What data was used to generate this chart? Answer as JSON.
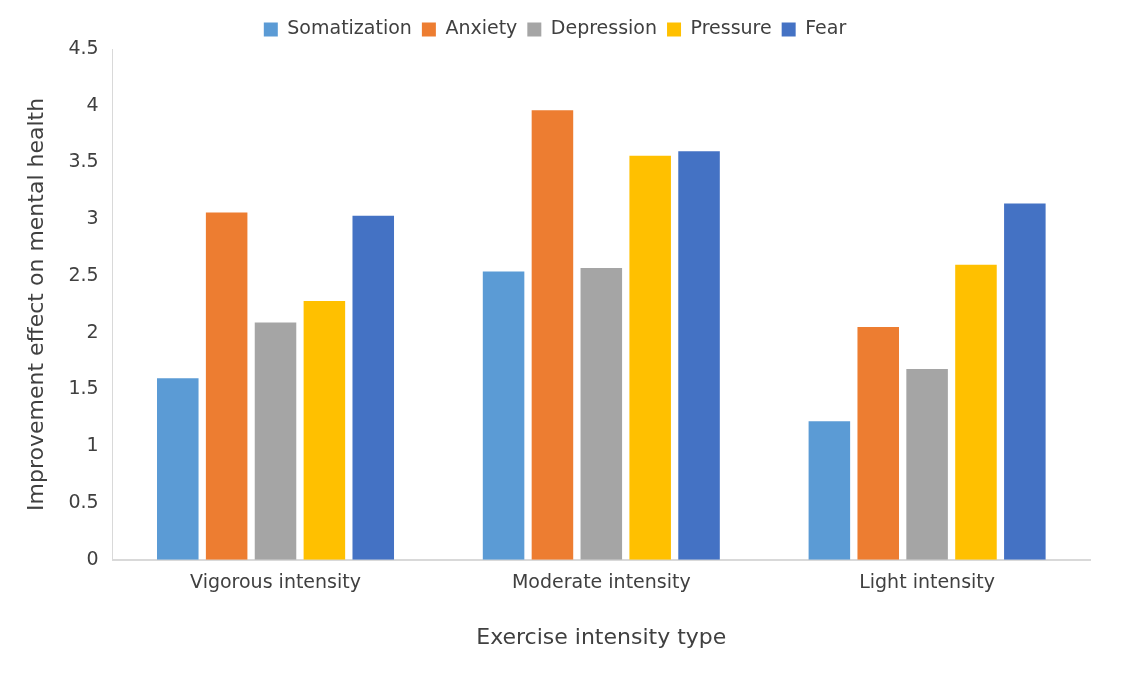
{
  "chart_data": {
    "type": "bar",
    "xlabel": "Exercise intensity type",
    "ylabel": "Improvement effect on mental health",
    "categories": [
      "Vigorous intensity",
      "Moderate intensity",
      "Light intensity"
    ],
    "series": [
      {
        "name": "Somatization",
        "color": "#5b9bd5",
        "values": [
          1.6,
          2.54,
          1.22
        ]
      },
      {
        "name": "Anxiety",
        "color": "#ed7d31",
        "values": [
          3.06,
          3.96,
          2.05
        ]
      },
      {
        "name": "Depression",
        "color": "#a5a5a5",
        "values": [
          2.09,
          2.57,
          1.68
        ]
      },
      {
        "name": "Pressure",
        "color": "#ffc000",
        "values": [
          2.28,
          3.56,
          2.6
        ]
      },
      {
        "name": "Fear",
        "color": "#4472c4",
        "values": [
          3.03,
          3.6,
          3.14
        ]
      }
    ],
    "ylim": [
      0,
      4.5
    ],
    "yticks": [
      0,
      0.5,
      1,
      1.5,
      2,
      2.5,
      3,
      3.5,
      4,
      4.5
    ],
    "grid": false,
    "legend": "top"
  }
}
